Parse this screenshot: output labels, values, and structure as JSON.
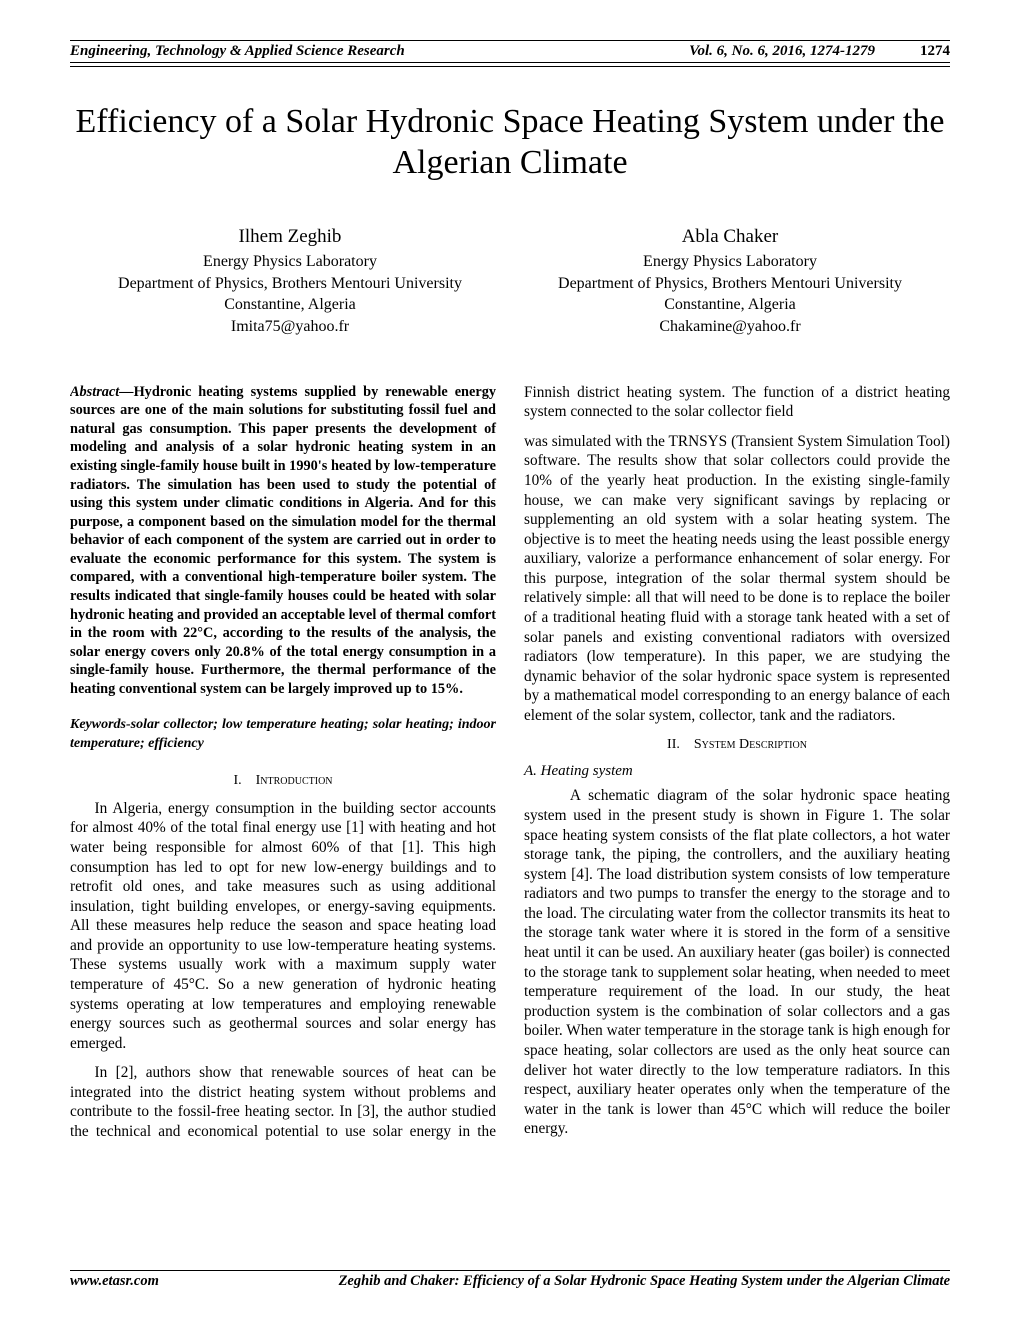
{
  "header": {
    "journal": "Engineering, Technology & Applied Science Research",
    "volume": "Vol. 6, No. 6, 2016, 1274-1279",
    "page": "1274"
  },
  "title": "Efficiency of a Solar Hydronic Space Heating System under the Algerian Climate",
  "authors": [
    {
      "name": "Ilhem Zeghib",
      "lab": "Energy Physics Laboratory",
      "dept": "Department of Physics, Brothers Mentouri University",
      "city": "Constantine, Algeria",
      "email": "Imita75@yahoo.fr"
    },
    {
      "name": "Abla Chaker",
      "lab": "Energy Physics Laboratory",
      "dept": "Department of Physics, Brothers Mentouri University",
      "city": "Constantine, Algeria",
      "email": "Chakamine@yahoo.fr"
    }
  ],
  "abstract": {
    "label": "Abstract—",
    "text": "Hydronic heating systems supplied by renewable energy sources are one of the main solutions for substituting fossil fuel and natural gas consumption. This paper presents the development of modeling and analysis of a solar hydronic heating system in an existing single-family house built in 1990's heated by low-temperature radiators. The simulation has been used to study the potential of using this system under climatic conditions in Algeria. And for this purpose, a component based on the simulation model for the thermal behavior of each component of the system are carried out in order to evaluate the economic performance for this system. The system is compared, with a conventional high-temperature boiler system.  The results indicated that single-family houses could be heated with solar hydronic  heating and provided an acceptable level of thermal comfort in the room with 22°C, according to the results of the analysis, the solar energy covers only 20.8% of the total energy consumption in a single-family house. Furthermore, the thermal performance of the heating conventional system can be largely improved up to 15%."
  },
  "keywords": "Keywords-solar collector; low temperature heating; solar heating; indoor temperature; efficiency",
  "sections": {
    "s1": {
      "num": "I.",
      "title": "Introduction"
    },
    "s2": {
      "num": "II.",
      "title": "System Description"
    }
  },
  "subsections": {
    "a": "A.   Heating system"
  },
  "paragraphs": {
    "intro1": "In Algeria, energy consumption in the building sector accounts for almost 40% of the total final energy use [1] with heating and hot water being responsible for almost 60% of that [1]. This high consumption has led to opt for new low-energy buildings and to retrofit old ones, and take measures such as using additional insulation, tight building envelopes, or energy-saving equipments. All these measures help reduce the season and space heating load and provide an opportunity to use low-temperature heating systems. These systems usually work with a maximum supply water temperature of 45°C.  So a new generation of hydronic heating systems operating at low temperatures and employing renewable energy sources such as geothermal sources and solar energy has emerged.",
    "intro2": "In [2], authors show that renewable sources of heat can be integrated into the district heating system without problems and contribute to the fossil-free heating sector. In [3], the author studied the technical and economical potential to use solar energy in the Finnish district heating system. The function of a district heating system connected to the solar collector field",
    "rightTop": "was simulated with the TRNSYS (Transient System Simulation Tool) software. The results show that solar collectors could provide the 10% of the yearly heat production.  In the existing single-family house, we can make very significant savings by replacing or supplementing an old system with a solar heating system. The objective is to meet the heating needs using the least possible energy auxiliary, valorize a performance enhancement of solar energy. For this purpose, integration of the solar thermal system should be relatively simple: all that will need to be done is to replace the boiler of a traditional heating fluid with a storage tank heated with a set of solar panels and existing conventional radiators with oversized radiators (low temperature). In this paper, we are studying the dynamic behavior of the solar hydronic space system is represented by a mathematical model corresponding to an energy balance of each element of the solar system, collector, tank and the radiators.",
    "heating": "A schematic diagram of the solar hydronic space heating system used in the present study is shown in Figure 1. The solar space heating system consists of the flat plate collectors, a hot water storage tank, the piping, the controllers, and the auxiliary heating system [4]. The load distribution system consists of low temperature radiators and two pumps to transfer the energy to the storage and to the load. The circulating water from the collector transmits its heat to the storage tank water where it is stored in the form of a sensitive heat until it can be used.  An auxiliary heater (gas boiler) is connected to the storage tank to supplement solar heating, when needed to meet temperature requirement of the load. In our study, the heat production system is the combination of solar collectors and a gas boiler. When water temperature in the storage tank is high enough for space heating, solar collectors are used as the only heat source can deliver hot water directly to the low temperature radiators. In this respect, auxiliary heater operates only when the temperature of the water in the tank is lower than 45°C which will reduce the boiler energy."
  },
  "footer": {
    "site": "www.etasr.com",
    "running": "Zeghib and Chaker: Efficiency of a Solar Hydronic Space Heating System under the Algerian Climate"
  }
}
